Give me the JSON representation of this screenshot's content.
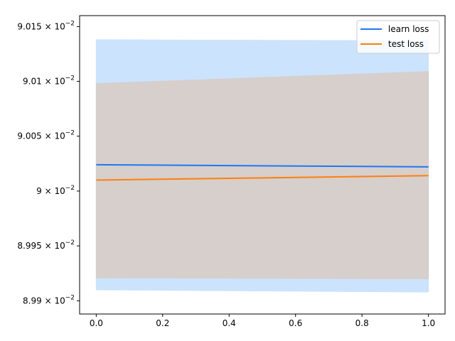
{
  "chart_data": {
    "type": "line",
    "title": "",
    "xlabel": "",
    "ylabel": "",
    "xlim": [
      -0.05,
      1.05
    ],
    "ylim": [
      0.089888,
      0.09016
    ],
    "yscale": "log",
    "grid": false,
    "legend_position": "top-right",
    "x_ticks": [
      0.0,
      0.2,
      0.4,
      0.6,
      0.8,
      1.0
    ],
    "x_tick_labels": [
      "0.0",
      "0.2",
      "0.4",
      "0.6",
      "0.8",
      "1.0"
    ],
    "y_ticks": [
      {
        "value": 0.0899,
        "mantissa": "8.99",
        "exponent": "−2"
      },
      {
        "value": 0.08995,
        "mantissa": "8.995",
        "exponent": "−2"
      },
      {
        "value": 0.09,
        "mantissa": "9",
        "exponent": "−2"
      },
      {
        "value": 0.09005,
        "mantissa": "9.005",
        "exponent": "−2"
      },
      {
        "value": 0.0901,
        "mantissa": "9.01",
        "exponent": "−2"
      },
      {
        "value": 0.09015,
        "mantissa": "9.015",
        "exponent": "−2"
      }
    ],
    "series": [
      {
        "name": "learn loss",
        "color": "#1f77f4",
        "band_color": "#cbe3fd",
        "x": [
          0.0,
          1.0
        ],
        "y": [
          0.090024,
          0.090022
        ],
        "band_low": [
          0.08991,
          0.089908
        ],
        "band_high": [
          0.090138,
          0.090137
        ]
      },
      {
        "name": "test loss",
        "color": "#ff7f0e",
        "band_color": "#d6cfcc",
        "x": [
          0.0,
          1.0
        ],
        "y": [
          0.09001,
          0.090014
        ],
        "band_low": [
          0.089921,
          0.08992
        ],
        "band_high": [
          0.090098,
          0.090109
        ]
      }
    ]
  }
}
